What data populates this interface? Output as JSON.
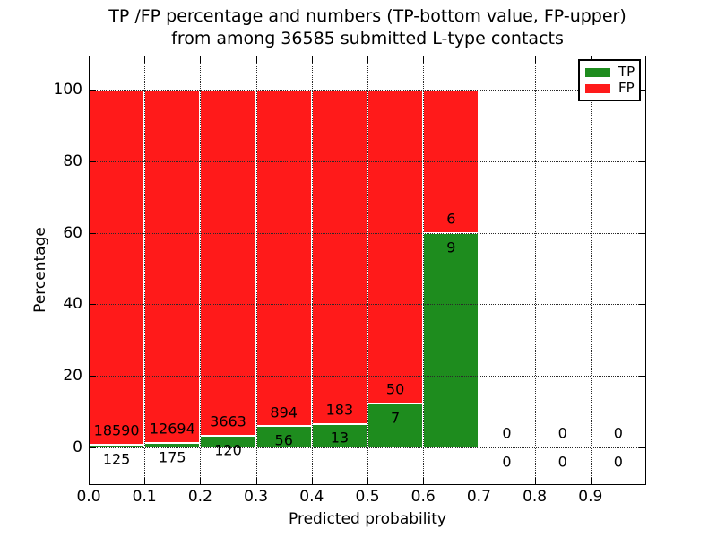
{
  "figure": {
    "title_line1": "TP /FP percentage and numbers (TP-bottom value, FP-upper)",
    "title_line2": "from among 36585 submitted L-type contacts"
  },
  "axes": {
    "xlabel": "Predicted probability",
    "ylabel": "Percentage"
  },
  "legend": {
    "items": [
      {
        "label": "TP",
        "color": "#1e8c1e"
      },
      {
        "label": "FP",
        "color": "#ff1a1a"
      }
    ]
  },
  "chart_data": {
    "type": "bar",
    "stacked": true,
    "title": "TP /FP percentage and numbers (TP-bottom value, FP-upper) from among 36585 submitted L-type contacts",
    "total_contacts": 36585,
    "xlabel": "Predicted probability",
    "ylabel": "Percentage",
    "xlim": [
      0.0,
      1.0
    ],
    "ylim": [
      -10.5,
      109.5
    ],
    "xticks": [
      0.0,
      0.1,
      0.2,
      0.3,
      0.4,
      0.5,
      0.6,
      0.7,
      0.8,
      0.9
    ],
    "yticks": [
      0,
      20,
      40,
      60,
      80,
      100
    ],
    "grid": "dotted",
    "bar_width": 0.1,
    "legend_position": "upper right",
    "bin_starts": [
      0.0,
      0.1,
      0.2,
      0.3,
      0.4,
      0.5,
      0.6,
      0.7,
      0.8,
      0.9
    ],
    "series": [
      {
        "name": "TP",
        "color": "#1e8c1e",
        "counts": [
          125,
          175,
          120,
          56,
          13,
          7,
          9,
          0,
          0,
          0
        ],
        "pct": [
          0.67,
          1.36,
          3.17,
          5.89,
          6.63,
          12.28,
          60.0,
          0,
          0,
          0
        ]
      },
      {
        "name": "FP",
        "color": "#ff1a1a",
        "counts": [
          18590,
          12694,
          3663,
          894,
          183,
          50,
          6,
          0,
          0,
          0
        ],
        "pct": [
          99.33,
          98.64,
          96.83,
          94.11,
          93.37,
          87.72,
          40.0,
          0,
          0,
          0
        ]
      }
    ],
    "annotation_offsets_pct": {
      "fp_label": 4,
      "tp_label": -4
    }
  }
}
